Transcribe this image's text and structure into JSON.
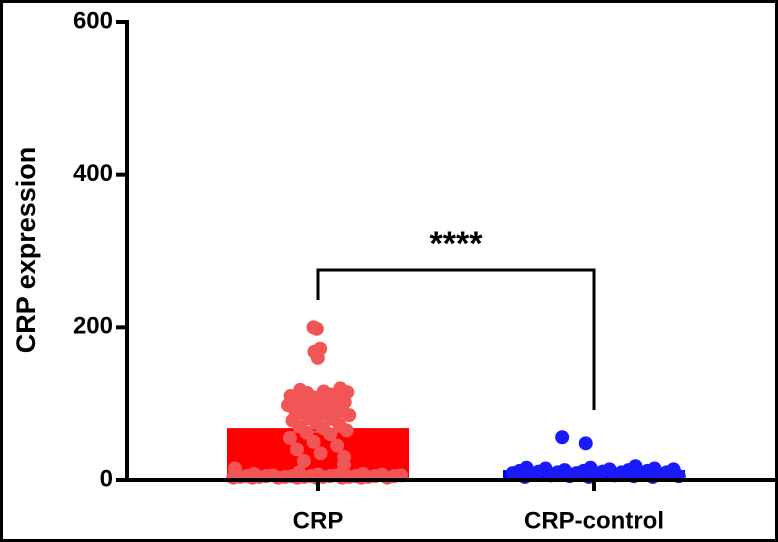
{
  "chart_data": {
    "type": "bar",
    "y_label": "CRP expression",
    "categories": [
      "CRP",
      "CRP-control"
    ],
    "values": [
      68,
      13
    ],
    "errors": [
      5,
      2
    ],
    "colors": [
      "#ff0000",
      "#0000ff"
    ],
    "point_colors": [
      "#f25555",
      "#1a1aff"
    ],
    "points": [
      [
        200,
        198,
        172,
        168,
        160,
        120,
        118,
        116,
        115,
        114,
        112,
        110,
        108,
        106,
        105,
        104,
        102,
        100,
        100,
        98,
        96,
        95,
        92,
        90,
        90,
        88,
        86,
        85,
        82,
        80,
        78,
        75,
        72,
        70,
        68,
        65,
        62,
        60,
        55,
        50,
        45,
        40,
        35,
        30,
        25,
        20,
        15,
        10,
        8,
        8,
        7,
        7,
        6,
        6,
        6,
        5,
        5,
        5,
        5,
        5,
        5,
        5,
        5,
        4,
        4,
        4,
        4,
        4,
        4,
        4,
        3,
        3,
        3,
        3,
        3,
        3,
        3,
        3
      ],
      [
        56,
        48,
        18,
        16,
        16,
        15,
        15,
        14,
        14,
        13,
        13,
        12,
        12,
        12,
        11,
        11,
        10,
        10,
        10,
        9,
        9,
        8,
        8,
        7,
        7,
        6,
        6,
        5,
        5,
        5,
        4,
        4,
        4
      ]
    ],
    "significance": "****",
    "ylim": [
      0,
      600
    ],
    "yticks": [
      0,
      200,
      400,
      600
    ]
  }
}
